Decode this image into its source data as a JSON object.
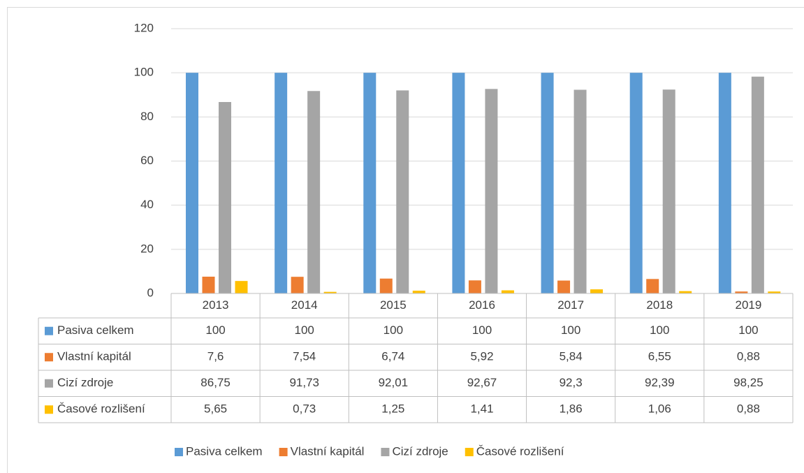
{
  "chart_data": {
    "type": "bar",
    "categories": [
      "2013",
      "2014",
      "2015",
      "2016",
      "2017",
      "2018",
      "2019"
    ],
    "series": [
      {
        "name": "Pasiva celkem",
        "color": "#5b9bd5",
        "values": [
          100,
          100,
          100,
          100,
          100,
          100,
          100
        ],
        "value_labels": [
          "100",
          "100",
          "100",
          "100",
          "100",
          "100",
          "100"
        ]
      },
      {
        "name": "Vlastní kapitál",
        "color": "#ed7d31",
        "values": [
          7.6,
          7.54,
          6.74,
          5.92,
          5.84,
          6.55,
          0.88
        ],
        "value_labels": [
          "7,6",
          "7,54",
          "6,74",
          "5,92",
          "5,84",
          "6,55",
          "0,88"
        ]
      },
      {
        "name": "Cizí zdroje",
        "color": "#a5a5a5",
        "values": [
          86.75,
          91.73,
          92.01,
          92.67,
          92.3,
          92.39,
          98.25
        ],
        "value_labels": [
          "86,75",
          "91,73",
          "92,01",
          "92,67",
          "92,3",
          "92,39",
          "98,25"
        ]
      },
      {
        "name": "Časové rozlišení",
        "color": "#ffc000",
        "values": [
          5.65,
          0.73,
          1.25,
          1.41,
          1.86,
          1.06,
          0.88
        ],
        "value_labels": [
          "5,65",
          "0,73",
          "1,25",
          "1,41",
          "1,86",
          "1,06",
          "0,88"
        ]
      }
    ],
    "ylim": [
      0,
      120
    ],
    "yticks": [
      0,
      20,
      40,
      60,
      80,
      100,
      120
    ],
    "grid": true,
    "legend": "bottom"
  }
}
